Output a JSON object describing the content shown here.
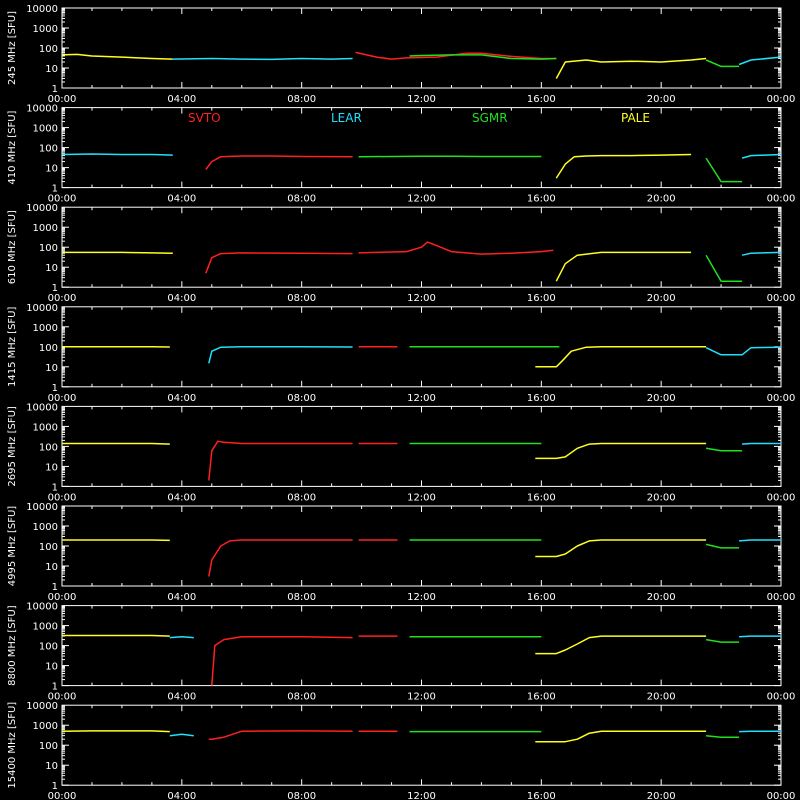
{
  "colors": {
    "background": "#000000",
    "axes": "#ffffff",
    "SVTO": "#ff2020",
    "LEAR": "#20e0ff",
    "SGMR": "#20e020",
    "PALE": "#ffff20"
  },
  "chart_data": {
    "type": "line",
    "x_ticks": [
      "00:00",
      "04:00",
      "08:00",
      "12:00",
      "16:00",
      "20:00",
      "00:00"
    ],
    "x_range_hours": [
      0,
      24
    ],
    "y_scale": "log",
    "y_ticks": [
      "10000",
      "1000",
      "100",
      "10",
      "1"
    ],
    "y_range": [
      1,
      10000
    ],
    "legend": [
      {
        "name": "SVTO",
        "color": "#ff2020"
      },
      {
        "name": "LEAR",
        "color": "#20e0ff"
      },
      {
        "name": "SGMR",
        "color": "#20e020"
      },
      {
        "name": "PALE",
        "color": "#ffff20"
      }
    ],
    "panels": [
      {
        "ylabel": "245 MHz  [SFU]",
        "series": [
          {
            "name": "PALE",
            "x": [
              0,
              0.5,
              1,
              2,
              3,
              3.7
            ],
            "y": [
              45,
              48,
              40,
              35,
              30,
              28
            ]
          },
          {
            "name": "LEAR",
            "x": [
              3.7,
              5,
              6,
              7,
              8,
              9,
              9.7
            ],
            "y": [
              28,
              30,
              28,
              27,
              30,
              28,
              30
            ]
          },
          {
            "name": "SVTO",
            "x": [
              9.8,
              10.5,
              11,
              11.5,
              12.5,
              13.5,
              14,
              14.5,
              15,
              16,
              16.5
            ],
            "y": [
              60,
              35,
              28,
              32,
              35,
              55,
              55,
              45,
              38,
              30,
              30
            ]
          },
          {
            "name": "SGMR",
            "x": [
              11.6,
              12,
              13,
              14,
              15,
              16,
              16.5
            ],
            "y": [
              40,
              42,
              45,
              45,
              30,
              28,
              30
            ]
          },
          {
            "name": "PALE",
            "x": [
              16.5,
              16.8,
              17.5,
              18,
              19,
              20,
              21,
              21.5
            ],
            "y": [
              3,
              20,
              25,
              20,
              22,
              20,
              25,
              30
            ]
          },
          {
            "name": "SGMR",
            "x": [
              21.5,
              22,
              22.6
            ],
            "y": [
              25,
              12,
              12
            ]
          },
          {
            "name": "LEAR",
            "x": [
              22.6,
              23,
              24
            ],
            "y": [
              15,
              25,
              35
            ]
          }
        ]
      },
      {
        "ylabel": "410 MHz  [SFU]",
        "series": [
          {
            "name": "LEAR",
            "x": [
              0,
              1,
              2,
              3,
              3.7
            ],
            "y": [
              45,
              48,
              45,
              45,
              42
            ]
          },
          {
            "name": "SVTO",
            "x": [
              4.8,
              5,
              5.3,
              6,
              7,
              8,
              9.7
            ],
            "y": [
              8,
              20,
              35,
              38,
              38,
              36,
              35
            ]
          },
          {
            "name": "SGMR",
            "x": [
              9.9,
              11,
              12,
              13,
              14,
              15,
              16
            ],
            "y": [
              35,
              36,
              37,
              37,
              36,
              36,
              36
            ]
          },
          {
            "name": "PALE",
            "x": [
              16.5,
              16.8,
              17.1,
              17.5,
              18,
              19,
              20,
              21
            ],
            "y": [
              3,
              15,
              35,
              38,
              40,
              40,
              42,
              45
            ]
          },
          {
            "name": "SGMR",
            "x": [
              21.5,
              22,
              22.7
            ],
            "y": [
              30,
              2,
              2
            ]
          },
          {
            "name": "LEAR",
            "x": [
              22.7,
              23,
              24
            ],
            "y": [
              30,
              40,
              45
            ]
          }
        ]
      },
      {
        "ylabel": "610 MHz  [SFU]",
        "series": [
          {
            "name": "PALE",
            "x": [
              0,
              1,
              2,
              3,
              3.7
            ],
            "y": [
              55,
              55,
              55,
              52,
              50
            ]
          },
          {
            "name": "SVTO",
            "x": [
              4.8,
              5,
              5.3,
              6,
              8,
              9.7
            ],
            "y": [
              5,
              30,
              48,
              52,
              50,
              48
            ]
          },
          {
            "name": "SVTO",
            "x": [
              9.9,
              10.5,
              11.5,
              12,
              12.2,
              12.5,
              13,
              14,
              15,
              16,
              16.4
            ],
            "y": [
              52,
              55,
              60,
              100,
              180,
              120,
              60,
              45,
              50,
              60,
              70
            ]
          },
          {
            "name": "PALE",
            "x": [
              16.5,
              16.8,
              17.2,
              18,
              19,
              20,
              21
            ],
            "y": [
              2,
              15,
              40,
              55,
              55,
              55,
              55
            ]
          },
          {
            "name": "SGMR",
            "x": [
              21.5,
              22,
              22.7
            ],
            "y": [
              40,
              2,
              2
            ]
          },
          {
            "name": "LEAR",
            "x": [
              22.7,
              23,
              24
            ],
            "y": [
              40,
              50,
              55
            ]
          }
        ]
      },
      {
        "ylabel": "1415 MHz  [SFU]",
        "series": [
          {
            "name": "PALE",
            "x": [
              0,
              1,
              2,
              3,
              3.6
            ],
            "y": [
              100,
              100,
              100,
              100,
              98
            ]
          },
          {
            "name": "LEAR",
            "x": [
              4.9,
              5,
              5.3,
              6,
              8,
              9.7
            ],
            "y": [
              15,
              60,
              95,
              100,
              100,
              98
            ]
          },
          {
            "name": "SVTO",
            "x": [
              9.9,
              10.5,
              11.2
            ],
            "y": [
              100,
              100,
              100
            ]
          },
          {
            "name": "SGMR",
            "x": [
              11.6,
              13,
              14,
              15,
              16,
              16.6
            ],
            "y": [
              100,
              100,
              100,
              100,
              100,
              100
            ]
          },
          {
            "name": "PALE",
            "x": [
              15.8,
              16.5,
              16.7,
              17,
              17.5,
              18,
              20,
              21.5
            ],
            "y": [
              10,
              10,
              20,
              60,
              95,
              100,
              100,
              100
            ]
          },
          {
            "name": "LEAR",
            "x": [
              21.5,
              22,
              22.7,
              23,
              24
            ],
            "y": [
              90,
              40,
              40,
              90,
              95
            ]
          }
        ]
      },
      {
        "ylabel": "2695 MHz  [SFU]",
        "series": [
          {
            "name": "PALE",
            "x": [
              0,
              1,
              2,
              3,
              3.6
            ],
            "y": [
              140,
              140,
              140,
              140,
              130
            ]
          },
          {
            "name": "SVTO",
            "x": [
              4.9,
              5,
              5.2,
              5.4,
              6,
              8,
              9.7
            ],
            "y": [
              2,
              60,
              180,
              160,
              140,
              140,
              140
            ]
          },
          {
            "name": "SVTO",
            "x": [
              9.9,
              10.5,
              11.2
            ],
            "y": [
              140,
              140,
              140
            ]
          },
          {
            "name": "SGMR",
            "x": [
              11.6,
              13,
              14,
              15,
              16
            ],
            "y": [
              140,
              140,
              140,
              140,
              140
            ]
          },
          {
            "name": "PALE",
            "x": [
              15.8,
              16.5,
              16.8,
              17.2,
              17.6,
              18,
              20,
              21.5
            ],
            "y": [
              25,
              25,
              30,
              80,
              130,
              140,
              140,
              140
            ]
          },
          {
            "name": "SGMR",
            "x": [
              21.5,
              22,
              22.7
            ],
            "y": [
              80,
              60,
              60
            ]
          },
          {
            "name": "LEAR",
            "x": [
              22.7,
              23,
              24
            ],
            "y": [
              130,
              140,
              140
            ]
          }
        ]
      },
      {
        "ylabel": "4995 MHz  [SFU]",
        "series": [
          {
            "name": "PALE",
            "x": [
              0,
              1,
              2,
              3,
              3.6
            ],
            "y": [
              200,
              200,
              200,
              200,
              190
            ]
          },
          {
            "name": "SVTO",
            "x": [
              4.9,
              5,
              5.3,
              5.6,
              6,
              8,
              9.7
            ],
            "y": [
              3,
              20,
              100,
              180,
              200,
              200,
              200
            ]
          },
          {
            "name": "SVTO",
            "x": [
              9.9,
              10.5,
              11.2
            ],
            "y": [
              200,
              200,
              200
            ]
          },
          {
            "name": "SGMR",
            "x": [
              11.6,
              13,
              14,
              15,
              16
            ],
            "y": [
              200,
              200,
              200,
              200,
              200
            ]
          },
          {
            "name": "PALE",
            "x": [
              15.8,
              16.5,
              16.8,
              17.2,
              17.6,
              18,
              20,
              21.5
            ],
            "y": [
              30,
              30,
              40,
              100,
              180,
              200,
              200,
              200
            ]
          },
          {
            "name": "SGMR",
            "x": [
              21.5,
              22,
              22.6
            ],
            "y": [
              120,
              80,
              80
            ]
          },
          {
            "name": "LEAR",
            "x": [
              22.6,
              23,
              24
            ],
            "y": [
              180,
              200,
              200
            ]
          }
        ]
      },
      {
        "ylabel": "8800 MHz  [SFU]",
        "series": [
          {
            "name": "PALE",
            "x": [
              0,
              1,
              2,
              3,
              3.6
            ],
            "y": [
              320,
              320,
              320,
              320,
              300
            ]
          },
          {
            "name": "LEAR",
            "x": [
              3.6,
              4,
              4.4
            ],
            "y": [
              250,
              280,
              250
            ]
          },
          {
            "name": "SVTO",
            "x": [
              5.0,
              5.1,
              5.4,
              6,
              8,
              9.7
            ],
            "y": [
              1,
              100,
              200,
              280,
              280,
              250
            ]
          },
          {
            "name": "SVTO",
            "x": [
              9.9,
              10.5,
              11.2
            ],
            "y": [
              300,
              300,
              300
            ]
          },
          {
            "name": "SGMR",
            "x": [
              11.6,
              13,
              14,
              15,
              16
            ],
            "y": [
              280,
              280,
              280,
              280,
              280
            ]
          },
          {
            "name": "PALE",
            "x": [
              15.8,
              16.5,
              16.8,
              17.2,
              17.6,
              18,
              20,
              21.5
            ],
            "y": [
              40,
              40,
              60,
              120,
              250,
              300,
              300,
              300
            ]
          },
          {
            "name": "SGMR",
            "x": [
              21.5,
              22,
              22.6
            ],
            "y": [
              200,
              150,
              150
            ]
          },
          {
            "name": "LEAR",
            "x": [
              22.6,
              23,
              24
            ],
            "y": [
              280,
              300,
              300
            ]
          }
        ]
      },
      {
        "ylabel": "15400 MHz  [SFU]",
        "series": [
          {
            "name": "PALE",
            "x": [
              0,
              1,
              2,
              3,
              3.6
            ],
            "y": [
              500,
              520,
              520,
              520,
              480
            ]
          },
          {
            "name": "LEAR",
            "x": [
              3.6,
              4,
              4.4
            ],
            "y": [
              300,
              350,
              300
            ]
          },
          {
            "name": "SVTO",
            "x": [
              4.9,
              5,
              5.4,
              6,
              8,
              9.7
            ],
            "y": [
              200,
              200,
              250,
              500,
              520,
              500
            ]
          },
          {
            "name": "SVTO",
            "x": [
              9.9,
              10.5,
              11.2
            ],
            "y": [
              500,
              500,
              500
            ]
          },
          {
            "name": "SGMR",
            "x": [
              11.6,
              13,
              14,
              15,
              16
            ],
            "y": [
              480,
              480,
              480,
              480,
              480
            ]
          },
          {
            "name": "PALE",
            "x": [
              15.8,
              16.5,
              16.8,
              17.2,
              17.6,
              18,
              20,
              21.5
            ],
            "y": [
              150,
              150,
              150,
              200,
              400,
              500,
              500,
              500
            ]
          },
          {
            "name": "SGMR",
            "x": [
              21.5,
              22,
              22.6
            ],
            "y": [
              300,
              250,
              250
            ]
          },
          {
            "name": "LEAR",
            "x": [
              22.6,
              23,
              24
            ],
            "y": [
              480,
              500,
              500
            ]
          }
        ]
      }
    ]
  }
}
